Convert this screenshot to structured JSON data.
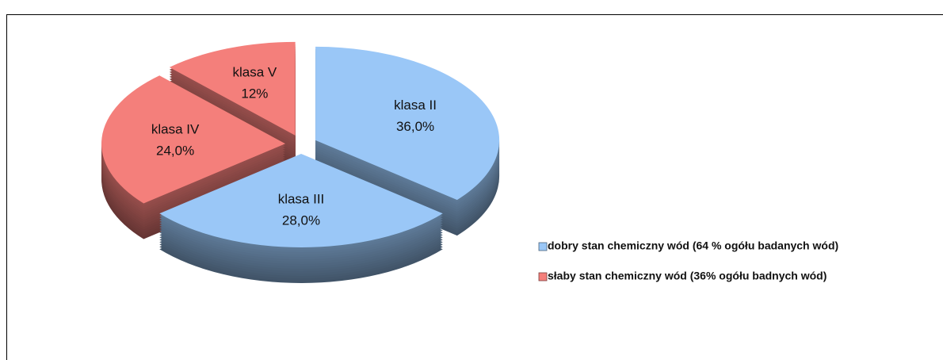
{
  "chart_data": {
    "type": "pie",
    "categories": [
      "klasa II",
      "klasa III",
      "klasa IV",
      "klasa V"
    ],
    "values": [
      36,
      28,
      24,
      12
    ],
    "value_labels": [
      "36,0%",
      "28,0%",
      "24,0%",
      "12%"
    ],
    "colors": [
      "#9ac7f7",
      "#9ac7f7",
      "#f47f7b",
      "#f47f7b"
    ],
    "legend": [
      {
        "name": "dobry stan chemiczny wód (64 % ogółu badanych wód)",
        "color": "#9ac7f7"
      },
      {
        "name": "słaby stan chemiczny wód (36% ogółu badnych wód)",
        "color": "#f47f7b"
      }
    ]
  }
}
